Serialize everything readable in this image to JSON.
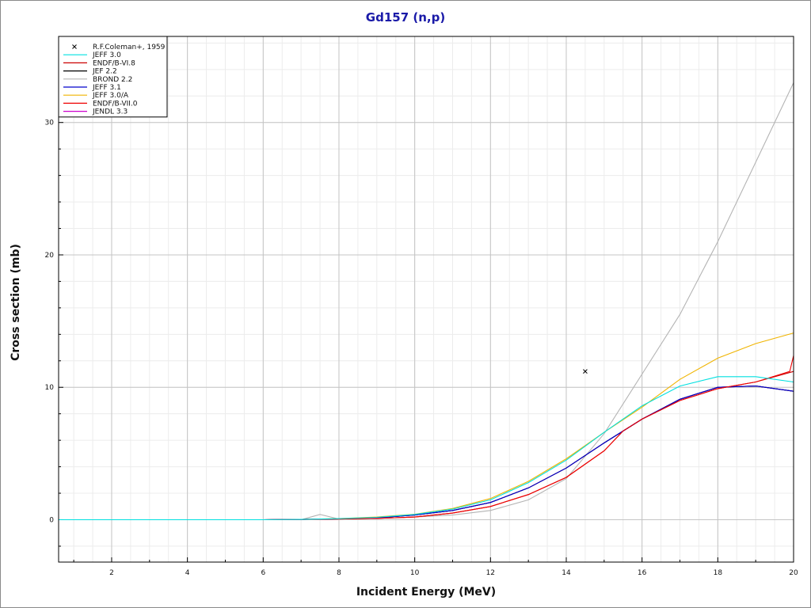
{
  "chart_data": {
    "type": "line",
    "title": "Gd157 (n,p)",
    "xlabel": "Incident Energy (MeV)",
    "ylabel": "Cross section (mb)",
    "xlim": [
      0.6,
      20
    ],
    "ylim": [
      -3.2,
      36.5
    ],
    "x_ticks": [
      2,
      4,
      6,
      8,
      10,
      12,
      14,
      16,
      18,
      20
    ],
    "y_ticks": [
      0,
      10,
      20,
      30
    ],
    "grid": true,
    "legend_position": "top-left",
    "series": [
      {
        "name": "R.F.Coleman+, 1959",
        "kind": "points",
        "color": "#000000",
        "x": [
          14.5
        ],
        "y": [
          11.2
        ]
      },
      {
        "name": "JEFF 3.0",
        "kind": "line",
        "color": "#00e0e0",
        "x": [
          0.6,
          6,
          7,
          8,
          9,
          10,
          11,
          12,
          13,
          14,
          15,
          16,
          17,
          18,
          19,
          20
        ],
        "y": [
          0,
          0,
          0.02,
          0.08,
          0.18,
          0.4,
          0.8,
          1.5,
          2.8,
          4.5,
          6.6,
          8.6,
          10.1,
          10.8,
          10.8,
          10.4
        ]
      },
      {
        "name": "ENDF/B-VI.8",
        "kind": "line",
        "color": "#cc0000",
        "x": [
          0.6,
          6,
          7,
          8,
          9,
          10,
          11,
          12,
          13,
          14,
          15,
          15.5,
          16,
          17,
          18,
          19,
          20
        ],
        "y": [
          0,
          0,
          0.02,
          0.05,
          0.1,
          0.2,
          0.5,
          1.0,
          1.9,
          3.2,
          5.2,
          6.7,
          7.6,
          9.0,
          9.9,
          10.4,
          11.2
        ]
      },
      {
        "name": "JEF 2.2",
        "kind": "line",
        "color": "#000000",
        "x": [
          0.6,
          6,
          7,
          8,
          9,
          10,
          11,
          12,
          13,
          14,
          15,
          16,
          17,
          18,
          19,
          20
        ],
        "y": [
          0,
          0,
          0.02,
          0.06,
          0.15,
          0.35,
          0.7,
          1.3,
          2.4,
          3.9,
          5.8,
          7.6,
          9.1,
          10.0,
          10.1,
          9.7
        ]
      },
      {
        "name": "BROND 2.2",
        "kind": "line",
        "color": "#b4b4b4",
        "x": [
          0.6,
          7,
          7.5,
          8,
          9,
          10,
          11,
          12,
          13,
          14,
          15,
          16,
          17,
          18,
          19,
          20
        ],
        "y": [
          0,
          0,
          0.4,
          0.05,
          0.1,
          0.2,
          0.35,
          0.7,
          1.5,
          3.1,
          6.5,
          11.0,
          15.5,
          21.0,
          27.0,
          33.0
        ]
      },
      {
        "name": "JEFF 3.1",
        "kind": "line",
        "color": "#0000cc",
        "x": [
          0.6,
          6,
          7,
          8,
          9,
          10,
          11,
          12,
          13,
          14,
          15,
          16,
          17,
          18,
          19,
          20
        ],
        "y": [
          0,
          0,
          0.02,
          0.06,
          0.15,
          0.35,
          0.7,
          1.3,
          2.4,
          3.9,
          5.8,
          7.6,
          9.1,
          10.0,
          10.1,
          9.7
        ]
      },
      {
        "name": "JEFF 3.0/A",
        "kind": "line",
        "color": "#f0b400",
        "x": [
          0.6,
          6,
          7,
          8,
          9,
          10,
          11,
          12,
          13,
          14,
          15,
          16,
          17,
          18,
          19,
          20
        ],
        "y": [
          0,
          0,
          0.02,
          0.08,
          0.2,
          0.42,
          0.85,
          1.6,
          2.9,
          4.6,
          6.6,
          8.5,
          10.6,
          12.2,
          13.3,
          14.1
        ]
      },
      {
        "name": "ENDF/B-VII.0",
        "kind": "line",
        "color": "#ee0000",
        "x": [
          0.6,
          6,
          7,
          8,
          9,
          10,
          11,
          12,
          13,
          14,
          15,
          15.5,
          16,
          17,
          18,
          19,
          19.9,
          20
        ],
        "y": [
          0,
          0,
          0.02,
          0.05,
          0.1,
          0.2,
          0.5,
          1.0,
          1.9,
          3.2,
          5.2,
          6.7,
          7.6,
          9.0,
          9.9,
          10.4,
          11.2,
          12.4
        ]
      },
      {
        "name": "JENDL 3.3",
        "kind": "line",
        "color": "#cc00cc",
        "x": [
          0.6,
          6,
          7,
          8,
          9,
          10,
          11,
          12,
          13,
          14,
          15,
          16,
          17,
          18,
          19,
          20
        ],
        "y": [
          0,
          0,
          0.02,
          0.06,
          0.15,
          0.35,
          0.7,
          1.3,
          2.4,
          3.9,
          5.8,
          7.6,
          9.1,
          10.0,
          10.1,
          9.7
        ]
      }
    ]
  }
}
